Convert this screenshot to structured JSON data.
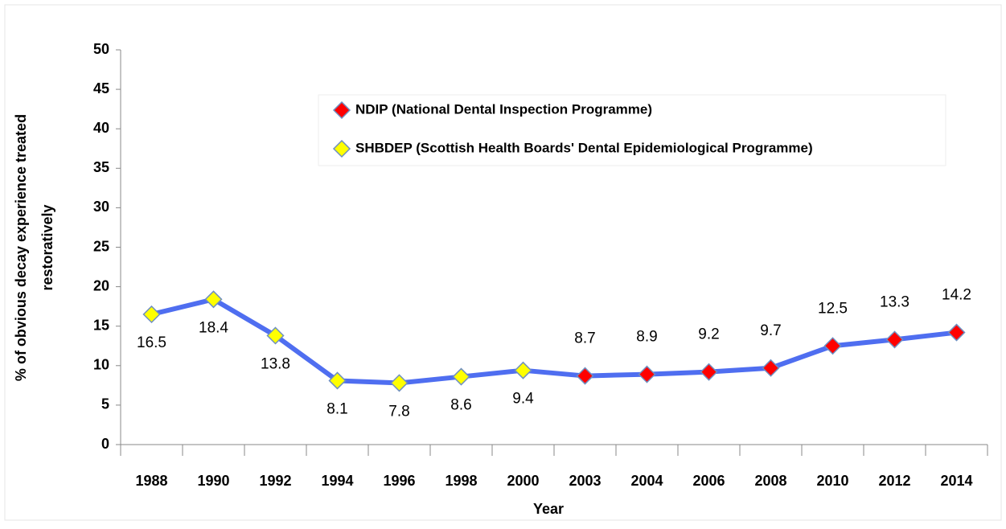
{
  "chart_data": {
    "type": "line",
    "categories": [
      "1988",
      "1990",
      "1992",
      "1994",
      "1996",
      "1998",
      "2000",
      "2003",
      "2004",
      "2006",
      "2008",
      "2010",
      "2012",
      "2014"
    ],
    "series": [
      {
        "name": "NDIP (National Dental Inspection Programme)",
        "color": "#ff0000",
        "marker": "diamond",
        "values": [
          null,
          null,
          null,
          null,
          null,
          null,
          null,
          8.7,
          8.9,
          9.2,
          9.7,
          12.5,
          13.3,
          14.2
        ]
      },
      {
        "name": "SHBDEP (Scottish Health Boards' Dental Epidemiological Programme)",
        "color": "#ffff00",
        "marker": "diamond",
        "values": [
          16.5,
          18.4,
          13.8,
          8.1,
          7.8,
          8.6,
          9.4,
          null,
          null,
          null,
          null,
          null,
          null,
          null
        ]
      }
    ],
    "line_color": "#4f6ef0",
    "xlabel": "Year",
    "ylabel": [
      "% of obvious decay experience treated",
      "restoratively"
    ],
    "ylim": [
      0,
      50
    ],
    "yticks": [
      0,
      5,
      10,
      15,
      20,
      25,
      30,
      35,
      40,
      45,
      50
    ],
    "grid": false,
    "legend": "top"
  }
}
